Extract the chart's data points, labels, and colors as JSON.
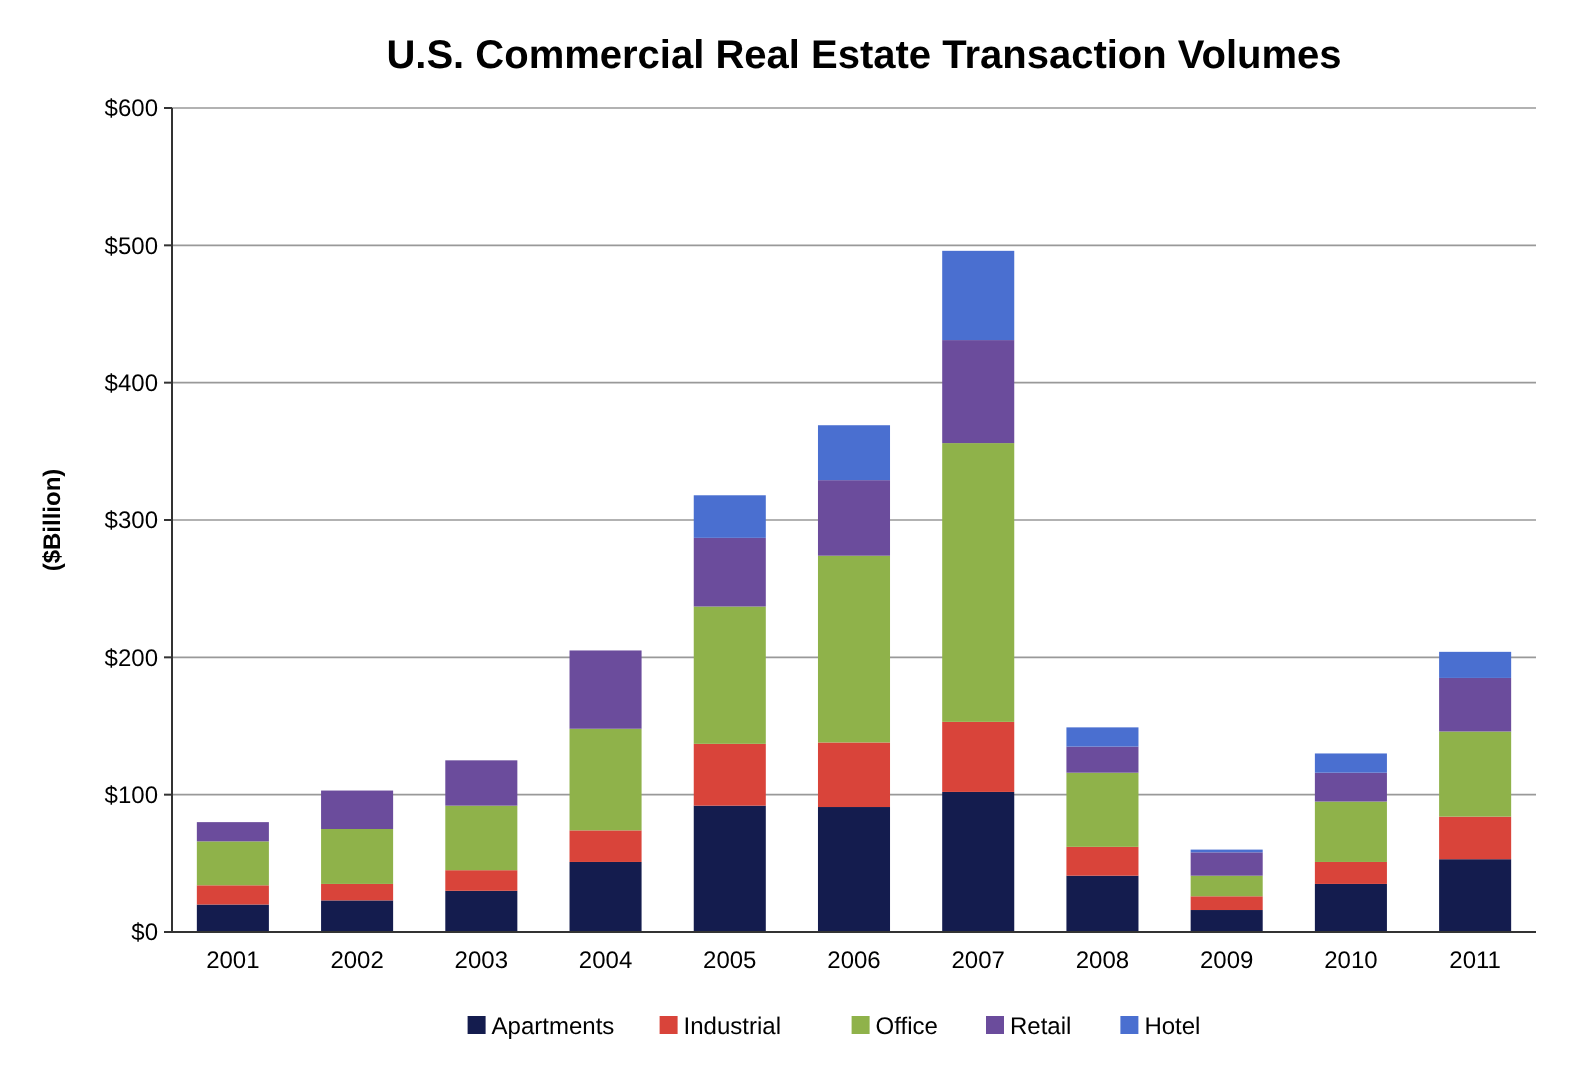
{
  "chart_data": {
    "type": "bar",
    "title": "U.S. Commercial Real Estate Transaction Volumes",
    "ylabel": "($Billion)",
    "stacked": true,
    "grid": "y",
    "legend": "bottom",
    "categories": [
      "2001",
      "2002",
      "2003",
      "2004",
      "2005",
      "2006",
      "2007",
      "2008",
      "2009",
      "2010",
      "2011"
    ],
    "ylim": [
      0,
      600
    ],
    "yticks": [
      {
        "value": 0,
        "label": "$0"
      },
      {
        "value": 100,
        "label": "$100"
      },
      {
        "value": 200,
        "label": "$200"
      },
      {
        "value": 300,
        "label": "$300"
      },
      {
        "value": 400,
        "label": "$400"
      },
      {
        "value": 500,
        "label": "$500"
      },
      {
        "value": 600,
        "label": "$600"
      }
    ],
    "series": [
      {
        "name": "Apartments",
        "color": "#141c4e",
        "values": [
          20,
          23,
          30,
          51,
          92,
          91,
          102,
          41,
          16,
          35,
          53
        ]
      },
      {
        "name": "Industrial",
        "color": "#d9443a",
        "values": [
          14,
          12,
          15,
          23,
          45,
          47,
          51,
          21,
          10,
          16,
          31
        ]
      },
      {
        "name": "Office",
        "color": "#8fb24a",
        "values": [
          32,
          40,
          47,
          74,
          100,
          136,
          203,
          54,
          15,
          44,
          62
        ]
      },
      {
        "name": "Retail",
        "color": "#6b4c9c",
        "values": [
          14,
          28,
          33,
          57,
          50,
          55,
          75,
          19,
          17,
          21,
          39
        ]
      },
      {
        "name": "Hotel",
        "color": "#4a6fd0",
        "values": [
          0,
          0,
          0,
          0,
          31,
          40,
          65,
          14,
          2,
          14,
          19
        ]
      }
    ]
  }
}
